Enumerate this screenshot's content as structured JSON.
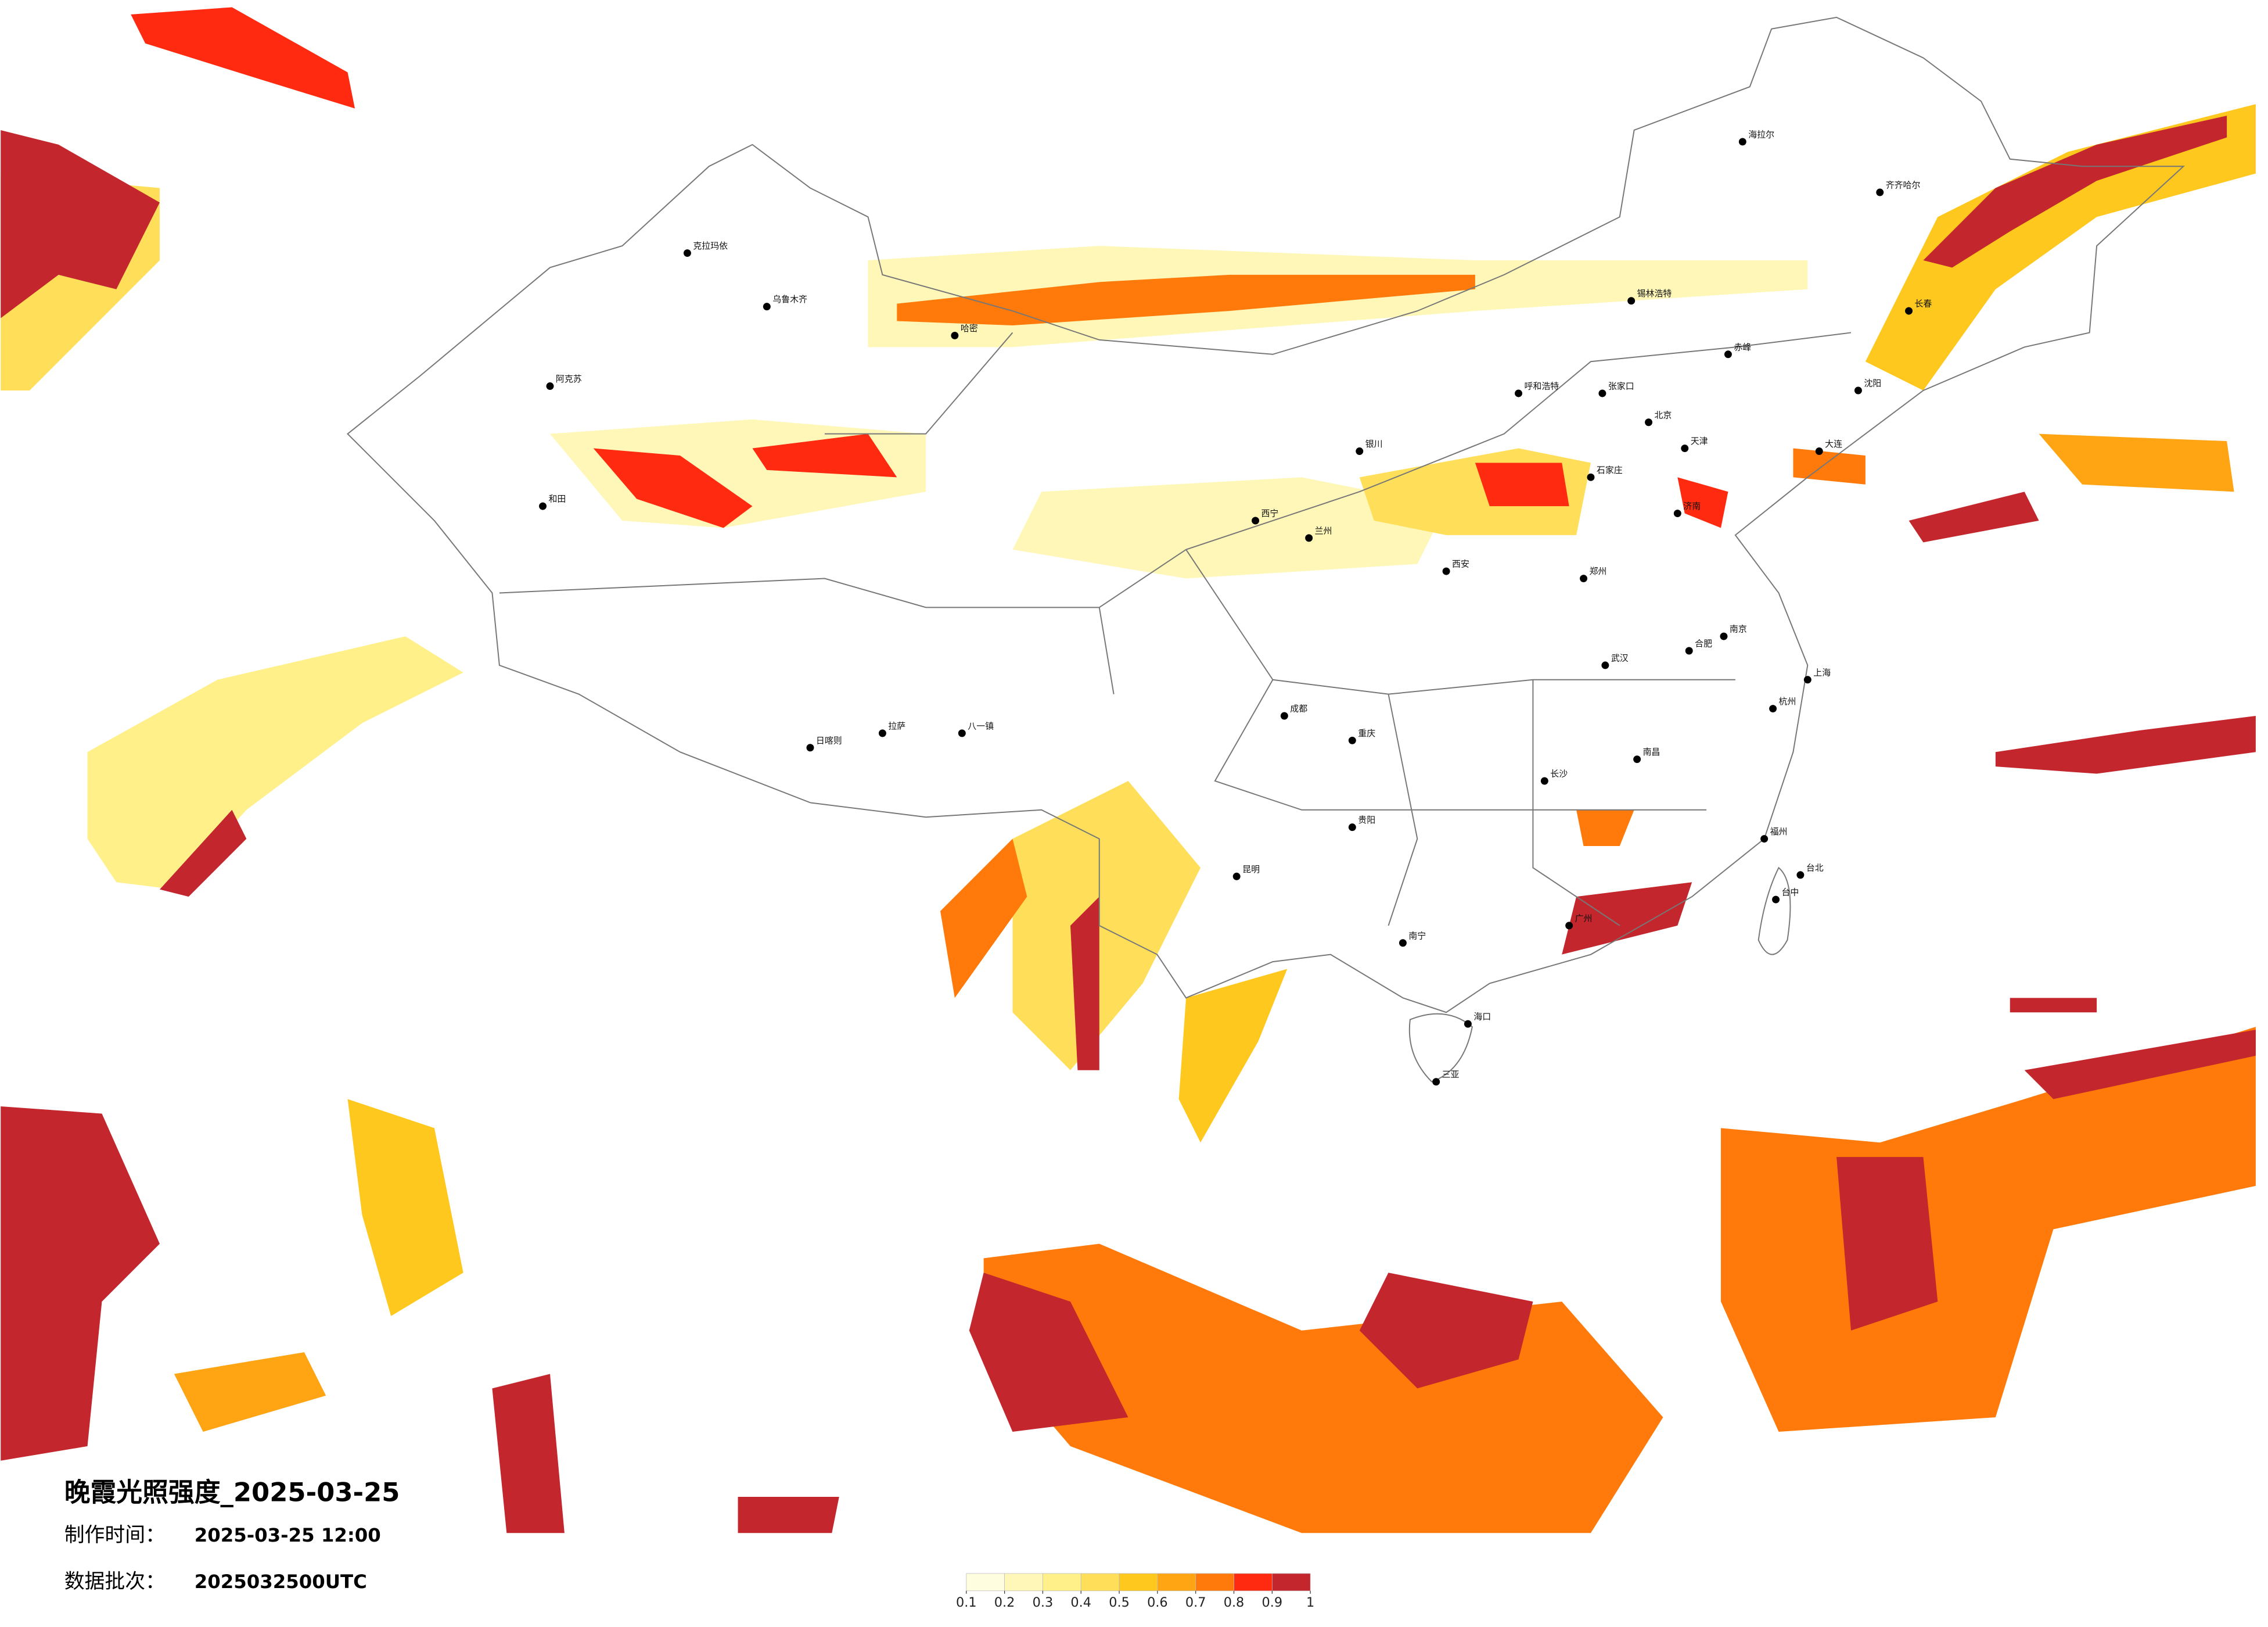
{
  "title": "晚霞光照强度_2025-03-25",
  "info": [
    {
      "label": "制作时间：",
      "value": "2025-03-25 12:00"
    },
    {
      "label": "数据批次：",
      "value": "2025032500UTC"
    }
  ],
  "legend": {
    "colors": [
      "#fffde0",
      "#fff7b8",
      "#fff08a",
      "#ffdf5a",
      "#ffc81e",
      "#ffa412",
      "#ff7a0a",
      "#ff2a10",
      "#c3272d"
    ],
    "ticks": [
      0.1,
      0.2,
      0.3,
      0.4,
      0.5,
      0.6,
      0.7,
      0.8,
      0.9,
      1
    ]
  },
  "cities": [
    "海拉尔",
    "齐齐哈尔",
    "长春",
    "沈阳",
    "大连",
    "赤峰",
    "锡林浩特",
    "呼和浩特",
    "张家口",
    "北京",
    "天津",
    "石家庄",
    "济南",
    "郑州",
    "西安",
    "兰州",
    "西宁",
    "银川",
    "成都",
    "重庆",
    "武汉",
    "长沙",
    "南昌",
    "合肥",
    "南京",
    "上海",
    "杭州",
    "福州",
    "台北",
    "台中",
    "广州",
    "南宁",
    "海口",
    "三亚",
    "贵阳",
    "昆明",
    "拉萨",
    "日喀则",
    "八一镇",
    "乌鲁木齐",
    "克拉玛依",
    "阿克苏",
    "和田",
    "哈密"
  ]
}
